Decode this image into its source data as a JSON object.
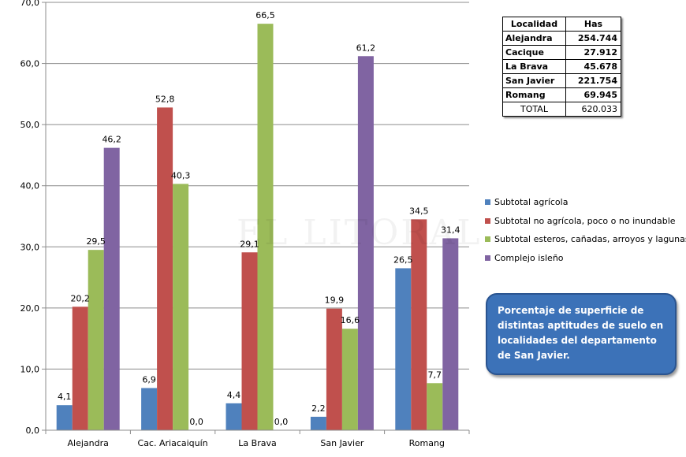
{
  "chart_data": {
    "type": "bar",
    "title": "",
    "xlabel": "",
    "ylabel": "",
    "ylim": [
      0,
      70
    ],
    "yticks": [
      "0,0",
      "10,0",
      "20,0",
      "30,0",
      "40,0",
      "50,0",
      "60,0",
      "70,0"
    ],
    "categories": [
      "Alejandra",
      "Cac. Ariacaiquín",
      "La Brava",
      "San Javier",
      "Romang"
    ],
    "series": [
      {
        "name": "Subtotal agrícola",
        "color": "#4f81bd",
        "values": [
          4.1,
          6.9,
          4.4,
          2.2,
          26.5
        ],
        "labels": [
          "4,1",
          "6,9",
          "4,4",
          "2,2",
          "26,5"
        ]
      },
      {
        "name": "Subtotal no agrícola, poco o no inundable",
        "color": "#c0504d",
        "values": [
          20.2,
          52.8,
          29.1,
          19.9,
          34.5
        ],
        "labels": [
          "20,2",
          "52,8",
          "29,1",
          "19,9",
          "34,5"
        ]
      },
      {
        "name": "Subtotal esteros, cañadas, arroyos y lagunas",
        "color": "#9bbb59",
        "values": [
          29.5,
          40.3,
          66.5,
          16.6,
          7.7
        ],
        "labels": [
          "29,5",
          "40,3",
          "66,5",
          "16,6",
          "7,7"
        ]
      },
      {
        "name": "Complejo isleño",
        "color": "#8064a2",
        "values": [
          46.2,
          0.0,
          0.0,
          61.2,
          31.4
        ],
        "labels": [
          "46,2",
          "0,0",
          "0,0",
          "61,2",
          "31,4"
        ]
      }
    ],
    "legend_position": "right"
  },
  "table": {
    "headers": [
      "Localidad",
      "Has"
    ],
    "rows": [
      [
        "Alejandra",
        "254.744"
      ],
      [
        "Cacique",
        "27.912"
      ],
      [
        "La Brava",
        "45.678"
      ],
      [
        "San Javier",
        "221.754"
      ],
      [
        "Romang",
        "69.945"
      ]
    ],
    "total": [
      "TOTAL",
      "620.033"
    ]
  },
  "caption": "Porcentaje de superficie de distintas aptitudes de suelo en localidades del departamento de San Javier.",
  "watermark": "EL LITORAL"
}
